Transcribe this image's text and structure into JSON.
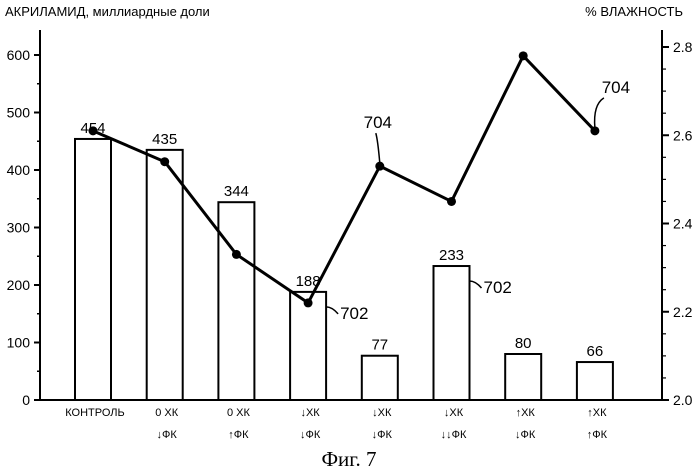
{
  "chart_data": {
    "type": "bar",
    "left_axis_title": "АКРИЛАМИД, миллиардные доли",
    "right_axis_title": "% ВЛАЖНОСТЬ",
    "categories": [
      [
        "КОНТРОЛЬ",
        ""
      ],
      [
        "0 ХК",
        "↓ФК"
      ],
      [
        "0 ХК",
        "↑ФК"
      ],
      [
        "↓ХК",
        "↓ФК"
      ],
      [
        "↓ХК",
        "↓ФК"
      ],
      [
        "↓ХК",
        "↓↓ФК"
      ],
      [
        "↑ХК",
        "↓ФК"
      ],
      [
        "↑ХК",
        "↑ФК"
      ]
    ],
    "bar_values": [
      454,
      435,
      344,
      188,
      77,
      233,
      80,
      66
    ],
    "line_values": [
      2.61,
      2.54,
      2.33,
      2.22,
      2.53,
      2.45,
      2.78,
      2.61
    ],
    "ylim_left": [
      0,
      600
    ],
    "yticks_left": [
      0,
      100,
      200,
      300,
      400,
      500,
      600
    ],
    "ylim_right": [
      2.0,
      2.8
    ],
    "yticks_right": [
      "2.0",
      "2.2",
      "2.4",
      "2.6",
      "2.8"
    ],
    "grid": false,
    "annotations": [
      {
        "label": "704",
        "target": "line",
        "index": 4
      },
      {
        "label": "702",
        "target": "bar",
        "index": 3
      },
      {
        "label": "702",
        "target": "bar",
        "index": 5
      },
      {
        "label": "704",
        "target": "line",
        "index": 7
      }
    ],
    "caption": "Фиг. 7"
  }
}
